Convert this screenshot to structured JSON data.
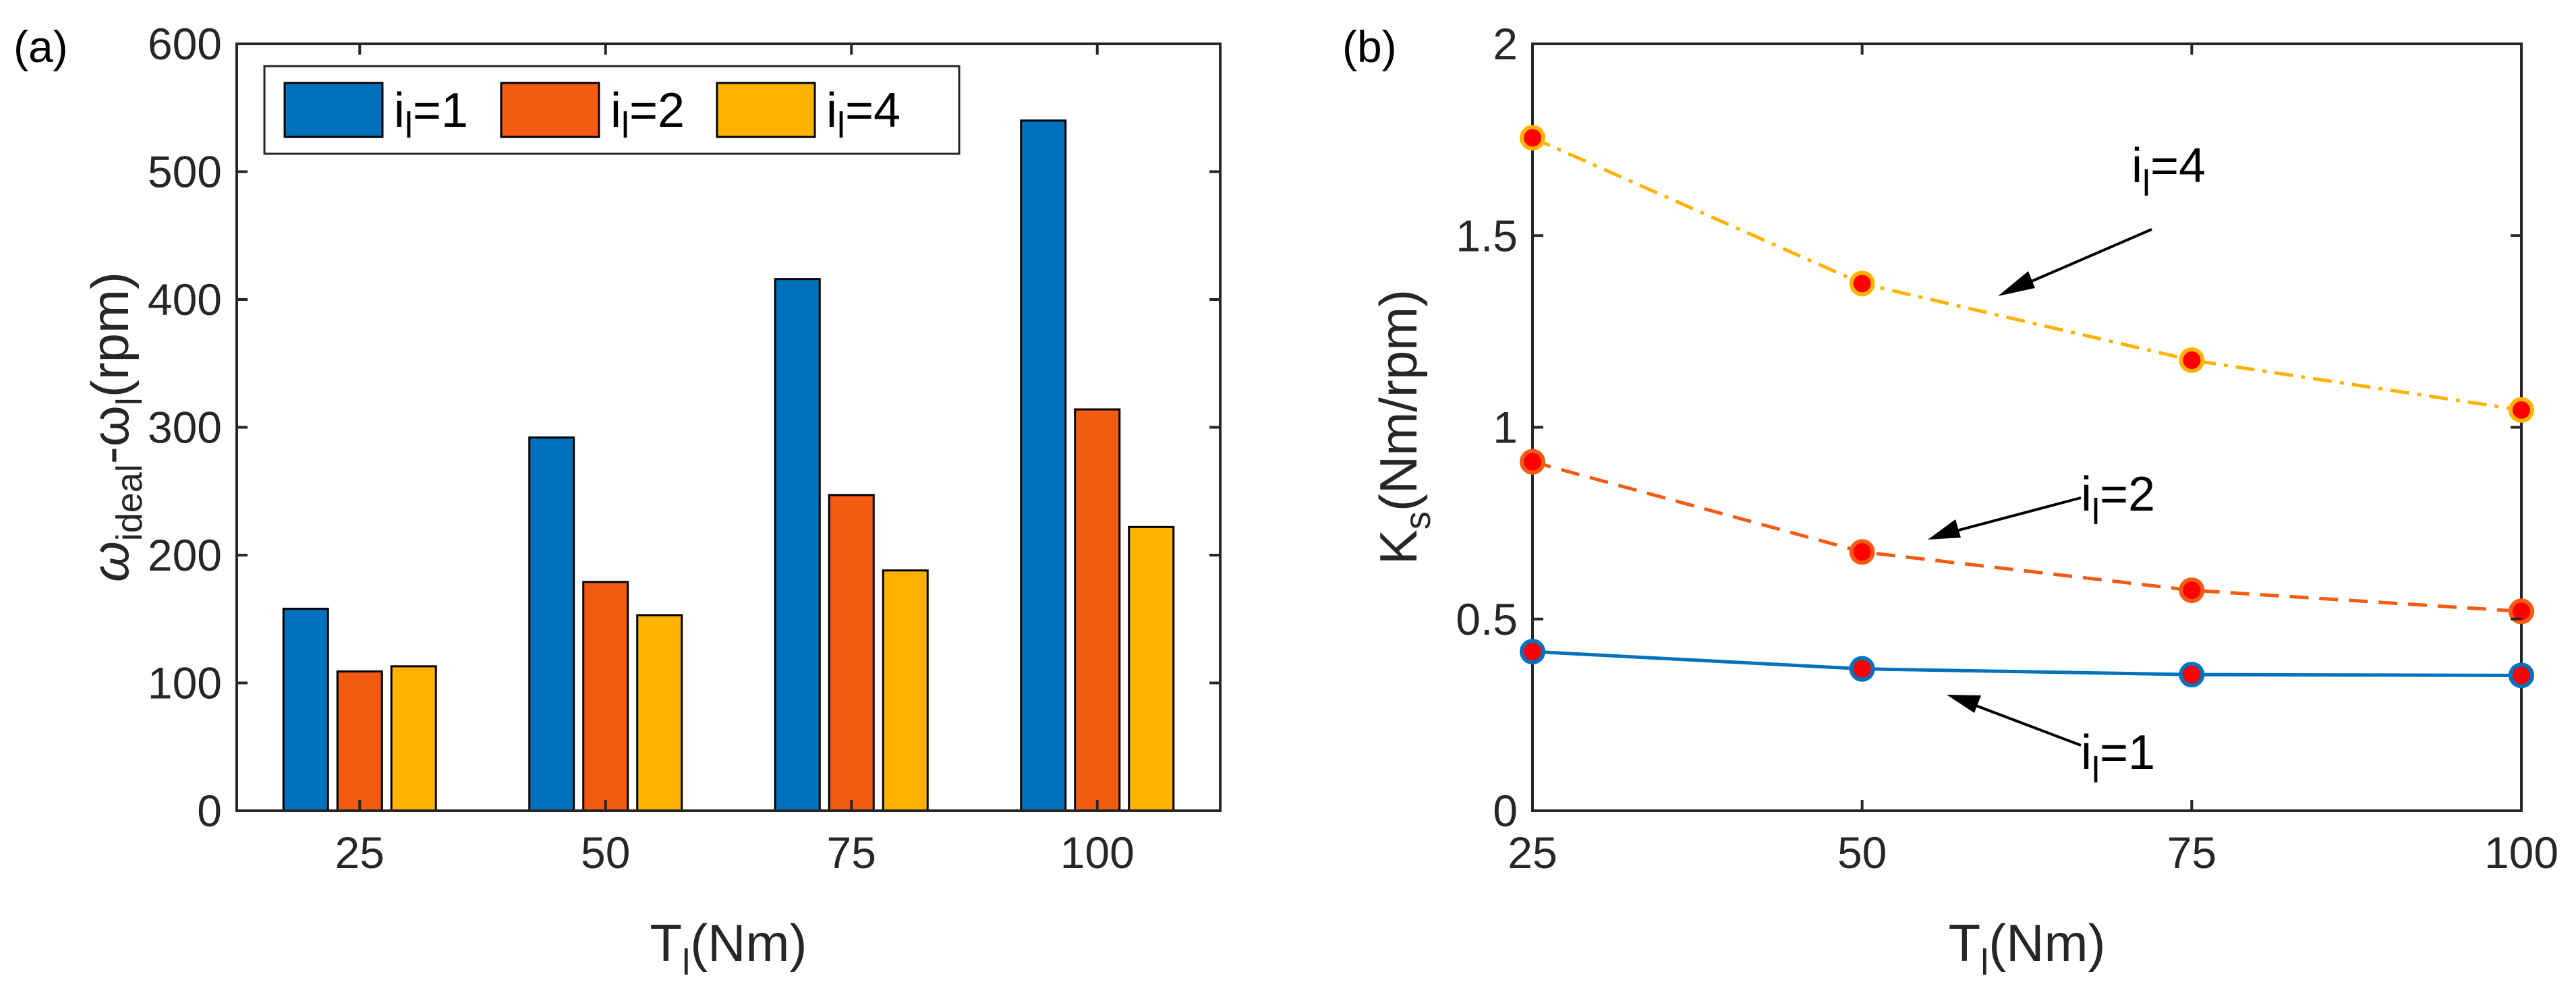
{
  "chart_data": [
    {
      "panel_label": "(a)",
      "type": "bar",
      "categories": [
        "25",
        "50",
        "75",
        "100"
      ],
      "series": [
        {
          "name_main": "i",
          "name_sub": "l",
          "name_rest": "=1",
          "color": "#0072BD",
          "values": [
            158,
            292,
            416,
            540
          ]
        },
        {
          "name_main": "i",
          "name_sub": "l",
          "name_rest": "=2",
          "color": "#F35A12",
          "values": [
            109,
            179,
            247,
            314
          ]
        },
        {
          "name_main": "i",
          "name_sub": "l",
          "name_rest": "=4",
          "color": "#FFB200",
          "values": [
            113,
            153,
            188,
            222
          ]
        }
      ],
      "xlabel": {
        "main": "T",
        "sub": "l",
        "rest": "(Nm)"
      },
      "ylabel": {
        "sym1": "ω",
        "sub1": "ideal",
        "mid": "-ω",
        "sub2": "l",
        "rest": "(rpm)"
      },
      "ylim": [
        0,
        600
      ],
      "yticks": [
        "0",
        "100",
        "200",
        "300",
        "400",
        "500",
        "600"
      ],
      "legend": "top-left",
      "grid": false
    },
    {
      "panel_label": "(b)",
      "type": "line",
      "x": [
        25,
        50,
        75,
        100
      ],
      "xticks": [
        "25",
        "50",
        "75",
        "100"
      ],
      "series": [
        {
          "name_main": "i",
          "name_sub": "l",
          "name_rest": "=1",
          "color": "#0072BD",
          "dash": "solid",
          "values": [
            0.415,
            0.37,
            0.355,
            0.353
          ]
        },
        {
          "name_main": "i",
          "name_sub": "l",
          "name_rest": "=2",
          "color": "#F35A12",
          "dash": "dashed",
          "values": [
            0.91,
            0.675,
            0.575,
            0.52
          ]
        },
        {
          "name_main": "i",
          "name_sub": "l",
          "name_rest": "=4",
          "color": "#FFB200",
          "dash": "dashdot",
          "values": [
            1.755,
            1.375,
            1.175,
            1.045
          ]
        }
      ],
      "xlabel": {
        "main": "T",
        "sub": "l",
        "rest": "(Nm)"
      },
      "ylabel": {
        "main": "K",
        "sub": "s",
        "rest": "(Nm/rpm)"
      },
      "xlim": [
        25,
        100
      ],
      "ylim": [
        0,
        2
      ],
      "yticks": [
        "0",
        "0.5",
        "1",
        "1.5",
        "2"
      ],
      "marker_fill": "#FF0000",
      "annotations": [
        {
          "series": 2,
          "main": "i",
          "sub": "l",
          "rest": "=4",
          "at_x": 60.3,
          "at_y": 1.33
        },
        {
          "series": 1,
          "main": "i",
          "sub": "l",
          "rest": "=2",
          "at_x": 56,
          "at_y": 0.7
        },
        {
          "series": 0,
          "main": "i",
          "sub": "l",
          "rest": "=1",
          "at_x": 56.3,
          "at_y": 0.3
        }
      ],
      "grid": false
    }
  ]
}
